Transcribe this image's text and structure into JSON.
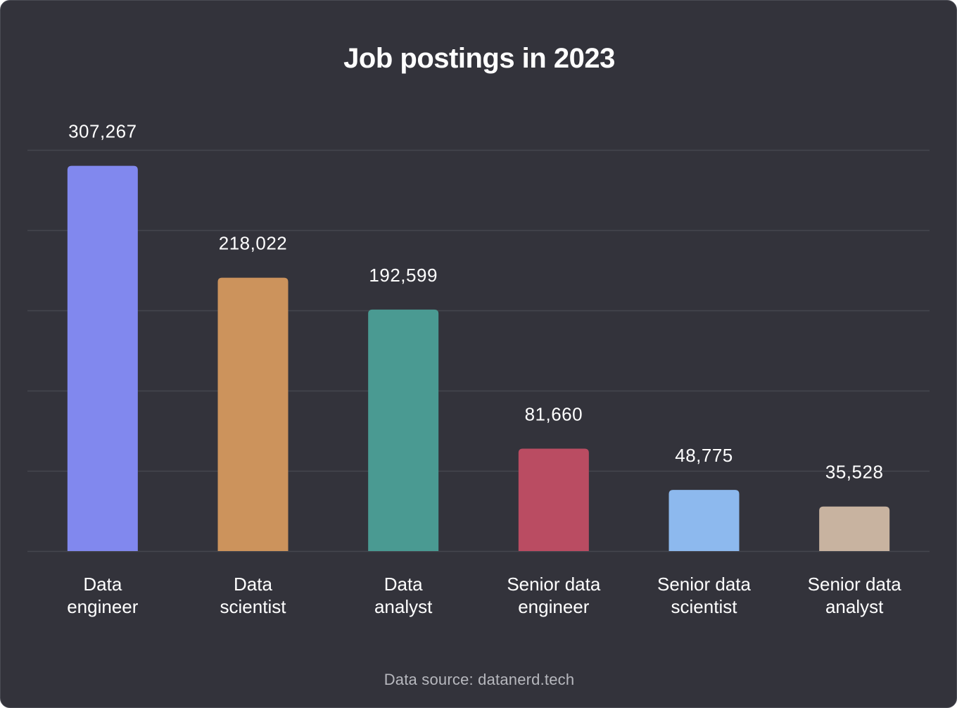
{
  "title": "Job postings in 2023",
  "source": "Data source: datanerd.tech",
  "colors": {
    "background": "#33333b",
    "grid": "#45464e",
    "text": "#ffffff"
  },
  "chart_data": {
    "type": "bar",
    "title": "Job postings in 2023",
    "categories": [
      [
        "Data",
        "engineer"
      ],
      [
        "Data",
        "scientist"
      ],
      [
        "Data",
        "analyst"
      ],
      [
        "Senior data",
        "engineer"
      ],
      [
        "Senior data",
        "scientist"
      ],
      [
        "Senior data",
        "analyst"
      ]
    ],
    "values": [
      307267,
      218022,
      192599,
      81660,
      48775,
      35528
    ],
    "value_labels": [
      "307,267",
      "218,022",
      "192,599",
      "81,660",
      "48,775",
      "35,528"
    ],
    "bar_colors": [
      "#8188ee",
      "#cc935c",
      "#4a9a92",
      "#ba4c62",
      "#8db9ee",
      "#c8b3a0"
    ],
    "ylim": [
      0,
      320000
    ],
    "gridlines": [
      0,
      64000,
      128000,
      192000,
      256000,
      320000
    ],
    "grid": true,
    "legend": "none",
    "xlabel": "",
    "ylabel": ""
  }
}
